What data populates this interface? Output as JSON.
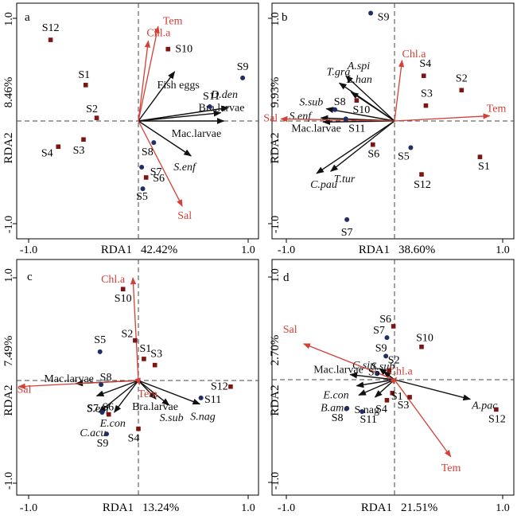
{
  "chart_data": [
    {
      "type": "scatter",
      "panel": "a",
      "xlabel": "RDA1",
      "xpct": "42.42%",
      "ylabel": "RDA2",
      "ypct": "8.46%",
      "xlim": [
        -1.0,
        1.0
      ],
      "ylim": [
        -1.0,
        1.0
      ],
      "ticks": {
        "xmin": "-1.0",
        "xmax": "1.0",
        "ymin": "-1.0",
        "ymax": "1.0"
      },
      "origin": [
        0.0,
        0.0
      ],
      "env_arrows": [
        {
          "label": "Tem",
          "x": 0.18,
          "y": 0.92,
          "italic": false
        },
        {
          "label": "Chl.a",
          "x": 0.09,
          "y": 0.78,
          "italic": false
        },
        {
          "label": "Sal",
          "x": 0.4,
          "y": -0.83,
          "italic": false
        }
      ],
      "species_arrows": [
        {
          "label": "Fish eggs",
          "x": 0.33,
          "y": 0.48,
          "italic": false
        },
        {
          "label": "D.den",
          "x": 0.82,
          "y": 0.13,
          "italic": true
        },
        {
          "label": "Bra.larvae",
          "x": 0.75,
          "y": 0.08,
          "italic": false
        },
        {
          "label": "Mac.larvae",
          "x": 0.78,
          "y": 0.0,
          "italic": false
        },
        {
          "label": "S.enf",
          "x": 0.48,
          "y": -0.34,
          "italic": true
        }
      ],
      "sites": [
        {
          "label": "S1",
          "x": -0.48,
          "y": 0.35,
          "marker": "square"
        },
        {
          "label": "S2",
          "x": -0.38,
          "y": 0.03,
          "marker": "square"
        },
        {
          "label": "S3",
          "x": -0.5,
          "y": -0.18,
          "marker": "square"
        },
        {
          "label": "S4",
          "x": -0.73,
          "y": -0.25,
          "marker": "square"
        },
        {
          "label": "S5",
          "x": 0.04,
          "y": -0.66,
          "marker": "circle"
        },
        {
          "label": "S6",
          "x": 0.07,
          "y": -0.55,
          "marker": "square"
        },
        {
          "label": "S7",
          "x": 0.03,
          "y": -0.45,
          "marker": "circle"
        },
        {
          "label": "S8",
          "x": 0.14,
          "y": -0.21,
          "marker": "circle"
        },
        {
          "label": "S9",
          "x": 0.95,
          "y": 0.42,
          "marker": "circle"
        },
        {
          "label": "S10",
          "x": 0.27,
          "y": 0.7,
          "marker": "square"
        },
        {
          "label": "S11",
          "x": 0.65,
          "y": 0.14,
          "marker": "circle"
        },
        {
          "label": "S12",
          "x": -0.8,
          "y": 0.79,
          "marker": "square"
        }
      ]
    },
    {
      "type": "scatter",
      "panel": "b",
      "xlabel": "RDA1",
      "xpct": "38.60%",
      "ylabel": "RDA2",
      "ypct": "9.93%",
      "xlim": [
        -1.0,
        1.0
      ],
      "ylim": [
        -1.0,
        1.0
      ],
      "ticks": {
        "xmin": "-1.0",
        "xmax": "1.0",
        "ymin": "-1.0",
        "ymax": "1.0"
      },
      "origin": [
        0.0,
        0.0
      ],
      "env_arrows": [
        {
          "label": "Chl.a",
          "x": 0.07,
          "y": 0.59,
          "italic": false
        },
        {
          "label": "Tem",
          "x": 0.88,
          "y": 0.05,
          "italic": false
        },
        {
          "label": "Sal",
          "x": -1.05,
          "y": 0.02,
          "italic": false
        }
      ],
      "species_arrows": [
        {
          "label": "A.spi",
          "x": -0.45,
          "y": 0.44,
          "italic": true
        },
        {
          "label": "T.gra",
          "x": -0.51,
          "y": 0.37,
          "italic": true
        },
        {
          "label": "L.han",
          "x": -0.4,
          "y": 0.28,
          "italic": true
        },
        {
          "label": "S.sub",
          "x": -0.63,
          "y": 0.12,
          "italic": true
        },
        {
          "label": "S.enf",
          "x": -0.68,
          "y": 0.03,
          "italic": true
        },
        {
          "label": "Mac.larvae",
          "x": -0.66,
          "y": -0.01,
          "italic": false
        },
        {
          "label": "C.pau",
          "x": -0.72,
          "y": -0.51,
          "italic": true
        },
        {
          "label": "T.tur",
          "x": -0.59,
          "y": -0.49,
          "italic": true
        }
      ],
      "sites": [
        {
          "label": "S1",
          "x": 0.79,
          "y": -0.35,
          "marker": "square"
        },
        {
          "label": "S2",
          "x": 0.62,
          "y": 0.3,
          "marker": "square"
        },
        {
          "label": "S3",
          "x": 0.29,
          "y": 0.15,
          "marker": "square"
        },
        {
          "label": "S4",
          "x": 0.27,
          "y": 0.44,
          "marker": "square"
        },
        {
          "label": "S5",
          "x": 0.15,
          "y": -0.26,
          "marker": "circle"
        },
        {
          "label": "S6",
          "x": -0.2,
          "y": -0.23,
          "marker": "square"
        },
        {
          "label": "S7",
          "x": -0.44,
          "y": -0.96,
          "marker": "circle"
        },
        {
          "label": "S8",
          "x": -0.55,
          "y": 0.11,
          "marker": "circle"
        },
        {
          "label": "S9",
          "x": -0.22,
          "y": 1.05,
          "marker": "circle"
        },
        {
          "label": "S10",
          "x": -0.35,
          "y": 0.2,
          "marker": "square"
        },
        {
          "label": "S11",
          "x": -0.45,
          "y": 0.02,
          "marker": "circle"
        },
        {
          "label": "S12",
          "x": 0.25,
          "y": -0.52,
          "marker": "square"
        }
      ]
    },
    {
      "type": "scatter",
      "panel": "c",
      "xlabel": "RDA1",
      "xpct": "13.24%",
      "ylabel": "RDA2",
      "ypct": "7.49%",
      "xlim": [
        -1.0,
        1.0
      ],
      "ylim": [
        -1.0,
        1.0
      ],
      "ticks": {
        "xmin": "-1.0",
        "xmax": "1.0",
        "ymin": "-1.0",
        "ymax": "1.0"
      },
      "origin": [
        0.0,
        0.0
      ],
      "env_arrows": [
        {
          "label": "Chl.a",
          "x": -0.05,
          "y": 1.0,
          "italic": false
        },
        {
          "label": "Sal",
          "x": -1.09,
          "y": -0.06,
          "italic": false
        },
        {
          "label": "Tem",
          "x": 0.01,
          "y": -0.04,
          "italic": false
        }
      ],
      "species_arrows": [
        {
          "label": "Mac.larvae",
          "x": -0.57,
          "y": -0.03,
          "italic": false
        },
        {
          "label": "S.enf",
          "x": -0.38,
          "y": -0.15,
          "italic": true
        },
        {
          "label": "E.con",
          "x": -0.22,
          "y": -0.31,
          "italic": true
        },
        {
          "label": "C.acu",
          "x": -0.36,
          "y": -0.31,
          "italic": true
        },
        {
          "label": "Bra.larvae",
          "x": 0.16,
          "y": -0.18,
          "italic": false
        },
        {
          "label": "S.sub",
          "x": 0.28,
          "y": -0.24,
          "italic": true
        },
        {
          "label": "S.nag",
          "x": 0.56,
          "y": -0.23,
          "italic": true
        }
      ],
      "sites": [
        {
          "label": "S1",
          "x": 0.05,
          "y": 0.21,
          "marker": "square"
        },
        {
          "label": "S2",
          "x": -0.03,
          "y": 0.39,
          "marker": "square"
        },
        {
          "label": "S3",
          "x": 0.15,
          "y": 0.15,
          "marker": "square"
        },
        {
          "label": "S4",
          "x": 0.0,
          "y": -0.47,
          "marker": "square"
        },
        {
          "label": "S5",
          "x": -0.35,
          "y": 0.28,
          "marker": "circle"
        },
        {
          "label": "S6",
          "x": -0.27,
          "y": -0.33,
          "marker": "square"
        },
        {
          "label": "S7",
          "x": -0.33,
          "y": -0.31,
          "marker": "circle"
        },
        {
          "label": "S8",
          "x": -0.34,
          "y": -0.04,
          "marker": "circle"
        },
        {
          "label": "S9",
          "x": -0.29,
          "y": -0.52,
          "marker": "circle"
        },
        {
          "label": "S10",
          "x": -0.14,
          "y": 0.89,
          "marker": "square"
        },
        {
          "label": "S11",
          "x": 0.57,
          "y": -0.17,
          "marker": "circle"
        },
        {
          "label": "S12",
          "x": 0.84,
          "y": -0.06,
          "marker": "square"
        }
      ]
    },
    {
      "type": "scatter",
      "panel": "d",
      "xlabel": "RDA1",
      "xpct": "21.51%",
      "ylabel": "RDA2",
      "ypct": "2.70%",
      "xlim": [
        -1.0,
        1.0
      ],
      "ylim": [
        -1.0,
        1.0
      ],
      "ticks": {
        "xmin": "-1.0",
        "xmax": "1.0",
        "ymin": "-1.0",
        "ymax": "1.0"
      },
      "origin": [
        0.0,
        0.0
      ],
      "env_arrows": [
        {
          "label": "Sal",
          "x": -0.84,
          "y": 0.35,
          "italic": false
        },
        {
          "label": "Chl.a",
          "x": 0.02,
          "y": 0.02,
          "italic": false
        },
        {
          "label": "Tem",
          "x": 0.52,
          "y": -0.75,
          "italic": false
        }
      ],
      "species_arrows": [
        {
          "label": "C.sin",
          "x": -0.14,
          "y": 0.11,
          "italic": true
        },
        {
          "label": "S.sub",
          "x": -0.1,
          "y": 0.08,
          "italic": true
        },
        {
          "label": "Mac.larvae",
          "x": -0.41,
          "y": 0.05,
          "italic": false
        },
        {
          "label": "E.con",
          "x": -0.35,
          "y": -0.06,
          "italic": true
        },
        {
          "label": "B.amo",
          "x": -0.33,
          "y": -0.15,
          "italic": true
        },
        {
          "label": "S.nag",
          "x": -0.18,
          "y": -0.17,
          "italic": false
        },
        {
          "label": "A.pac",
          "x": 0.7,
          "y": -0.19,
          "italic": true
        }
      ],
      "sites": [
        {
          "label": "S1",
          "x": -0.02,
          "y": -0.13,
          "marker": "square"
        },
        {
          "label": "S2",
          "x": -0.05,
          "y": 0.09,
          "marker": "square"
        },
        {
          "label": "S3",
          "x": 0.14,
          "y": -0.17,
          "marker": "square"
        },
        {
          "label": "S4",
          "x": -0.07,
          "y": -0.2,
          "marker": "square"
        },
        {
          "label": "S5",
          "x": -0.16,
          "y": 0.06,
          "marker": "circle"
        },
        {
          "label": "S6",
          "x": -0.01,
          "y": 0.52,
          "marker": "square"
        },
        {
          "label": "S7",
          "x": -0.07,
          "y": 0.41,
          "marker": "circle"
        },
        {
          "label": "S8",
          "x": -0.44,
          "y": -0.28,
          "marker": "circle"
        },
        {
          "label": "S9",
          "x": -0.08,
          "y": 0.23,
          "marker": "circle"
        },
        {
          "label": "S10",
          "x": 0.25,
          "y": 0.32,
          "marker": "square"
        },
        {
          "label": "S11",
          "x": -0.3,
          "y": -0.31,
          "marker": "circle"
        },
        {
          "label": "S12",
          "x": 0.94,
          "y": -0.29,
          "marker": "square"
        }
      ]
    }
  ],
  "colors": {
    "env_arrow": "#d43f36",
    "species_arrow": "#111111",
    "site_square": "#7d1515",
    "site_circle": "#1f2f66",
    "reference_line": "#444444"
  }
}
